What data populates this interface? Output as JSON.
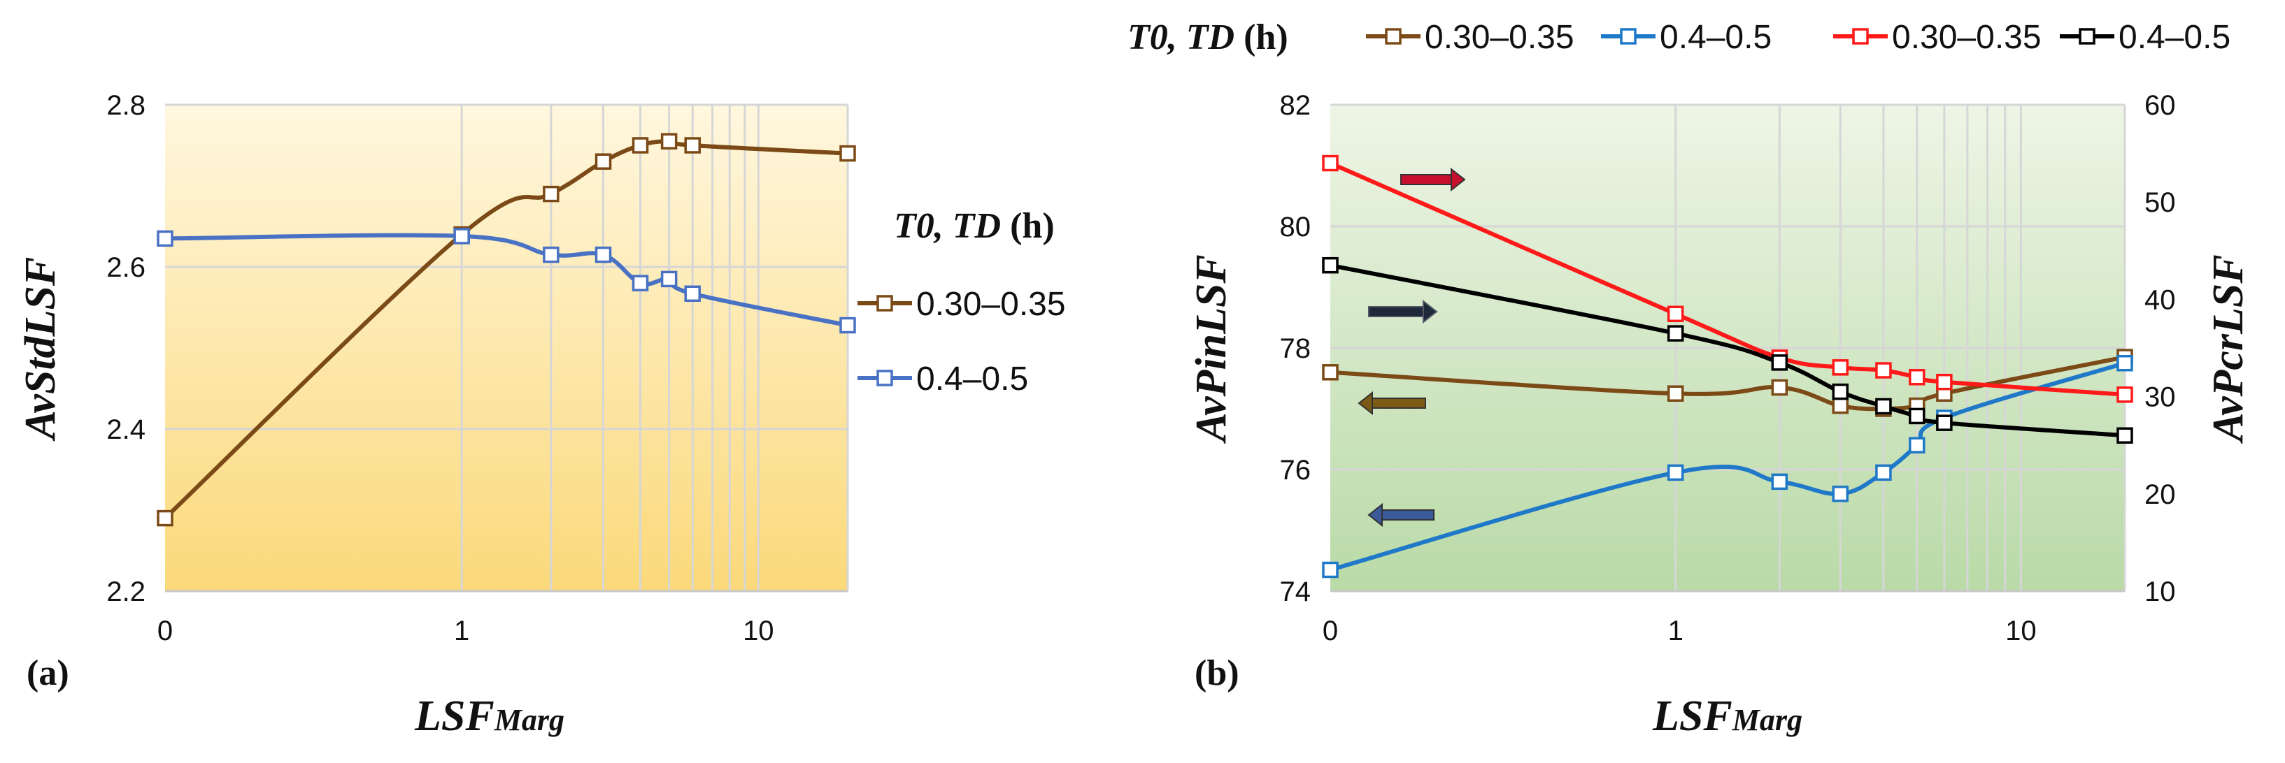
{
  "chart_data": [
    {
      "panel": "(a)",
      "type": "line",
      "xlabel": "LSF",
      "xlabel_sub": "Marg",
      "ylabel": "AvStdLSF",
      "x_ticks": [
        "0",
        "1",
        "10"
      ],
      "ylim": [
        2.2,
        2.8
      ],
      "y_ticks": [
        "2.2",
        "2.4",
        "2.6",
        "2.8"
      ],
      "legend_title_italic": "T0, TD",
      "legend_title_unit": " (h)",
      "series": [
        {
          "name": "0.30–0.35",
          "color": "#7b4a16",
          "x": [
            0,
            1,
            2,
            3,
            4,
            5,
            6,
            20
          ],
          "y": [
            2.29,
            2.64,
            2.69,
            2.73,
            2.75,
            2.755,
            2.75,
            2.74
          ]
        },
        {
          "name": "0.4–0.5",
          "color": "#4a72c4",
          "x": [
            0,
            1,
            2,
            3,
            4,
            5,
            6,
            20
          ],
          "y": [
            2.635,
            2.638,
            2.615,
            2.615,
            2.58,
            2.585,
            2.567,
            2.528
          ]
        }
      ]
    },
    {
      "panel": "(b)",
      "type": "line",
      "xlabel": "LSF",
      "xlabel_sub": "Marg",
      "ylabel": "AvPinLSF",
      "ylabel_right": "AvPcrLSF",
      "x_ticks": [
        "0",
        "1",
        "10"
      ],
      "ylim": [
        74,
        82
      ],
      "y_ticks": [
        "74",
        "76",
        "78",
        "80",
        "82"
      ],
      "ylim_right": [
        10,
        60
      ],
      "y_ticks_right": [
        "10",
        "20",
        "30",
        "40",
        "50",
        "60"
      ],
      "legend_title_italic": "T0, TD",
      "legend_title_unit": " (h)",
      "series": [
        {
          "name": "0.30–0.35",
          "color": "#7b4a16",
          "axis": "left",
          "x": [
            0,
            1,
            2,
            3,
            4,
            5,
            6,
            20
          ],
          "y": [
            77.6,
            77.25,
            77.35,
            77.05,
            77.0,
            77.05,
            77.25,
            77.85
          ]
        },
        {
          "name": "0.4–0.5",
          "color": "#1f78c8",
          "axis": "left",
          "x": [
            0,
            1,
            2,
            3,
            4,
            5,
            6,
            20
          ],
          "y": [
            74.35,
            75.95,
            75.8,
            75.6,
            75.95,
            76.4,
            76.85,
            77.75
          ]
        },
        {
          "name": "0.30–0.35",
          "color": "#ff1a1a",
          "axis": "right",
          "x": [
            0,
            1,
            2,
            3,
            4,
            5,
            6,
            20
          ],
          "y": [
            54,
            38.5,
            34,
            33,
            32.7,
            32,
            31.5,
            30.2
          ]
        },
        {
          "name": "0.4–0.5",
          "color": "#000000",
          "axis": "right",
          "x": [
            0,
            1,
            2,
            3,
            4,
            5,
            6,
            20
          ],
          "y": [
            43.5,
            36.5,
            33.5,
            30.5,
            29,
            28,
            27.3,
            26
          ]
        }
      ]
    }
  ]
}
